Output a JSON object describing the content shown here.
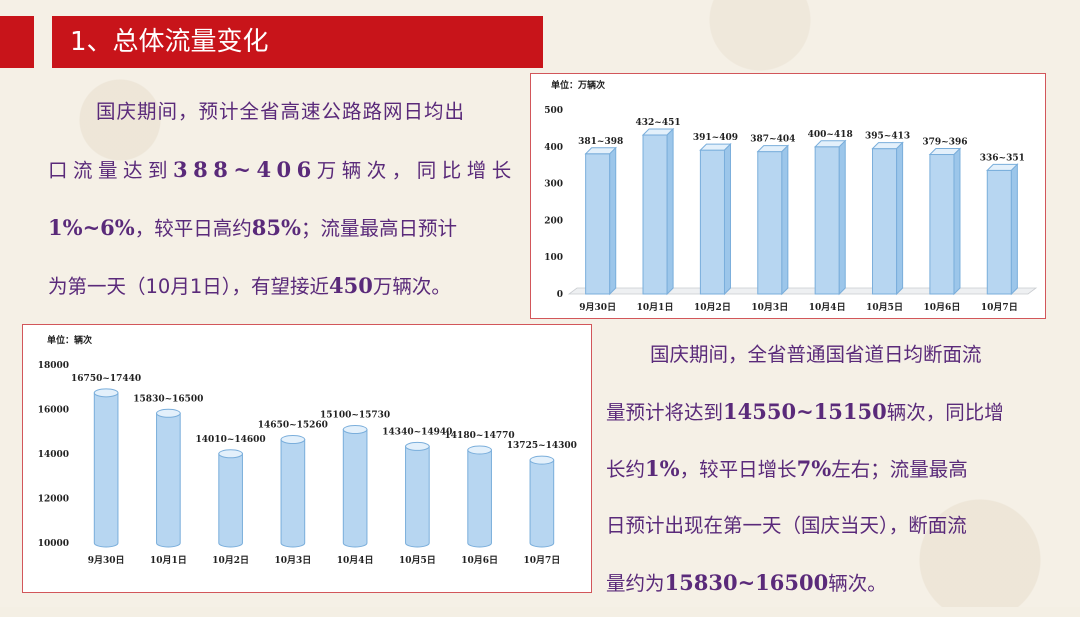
{
  "section_title": "1、总体流量变化",
  "para1": {
    "l1": "国庆期间，预计全省高速公路路网日均出",
    "l2a": "口流量达到",
    "l2b": "388~406",
    "l2c": "万辆次，同比增长",
    "l3a": "1%~6%",
    "l3b": "，较平日高约",
    "l3c": "85%",
    "l3d": "；流量最高日预计",
    "l4a": "为第一天（10月1日），有望接近",
    "l4b": "450",
    "l4c": "万辆次。"
  },
  "para2": {
    "l1": "国庆期间，全省普通国省道日均断面流",
    "l2a": "量预计将达到",
    "l2b": "14550~15150",
    "l2c": "辆次，同比增",
    "l3a": "长约",
    "l3b": "1%",
    "l3c": "，较平日增长",
    "l3d": "7%",
    "l3e": "左右；流量最高",
    "l4": "日预计出现在第一天（国庆当天），断面流",
    "l5a": "量约为",
    "l5b": "15830~16500",
    "l5c": "辆次。"
  },
  "chart_data": [
    {
      "type": "bar",
      "unit_label": "单位：万辆次",
      "categories": [
        "9月30日",
        "10月1日",
        "10月2日",
        "10月3日",
        "10月4日",
        "10月5日",
        "10月6日",
        "10月7日"
      ],
      "values": [
        381,
        432,
        391,
        387,
        400,
        395,
        379,
        336
      ],
      "data_labels": [
        "381~398",
        "432~451",
        "391~409",
        "387~404",
        "400~418",
        "395~413",
        "379~396",
        "336~351"
      ],
      "ylim": [
        0,
        500
      ],
      "yticks": [
        0,
        100,
        200,
        300,
        400,
        500
      ],
      "colors": {
        "bar_fill": "#b7d6f1",
        "bar_edge": "#7aaedb",
        "border": "#d2565a"
      }
    },
    {
      "type": "bar",
      "unit_label": "单位：辆次",
      "categories": [
        "9月30日",
        "10月1日",
        "10月2日",
        "10月3日",
        "10月4日",
        "10月5日",
        "10月6日",
        "10月7日"
      ],
      "values": [
        16750,
        15830,
        14010,
        14650,
        15100,
        14340,
        14180,
        13725
      ],
      "data_labels": [
        "16750~17440",
        "15830~16500",
        "14010~14600",
        "14650~15260",
        "15100~15730",
        "14340~14940",
        "14180~14770",
        "13725~14300"
      ],
      "ylim": [
        10000,
        18000
      ],
      "yticks": [
        10000,
        12000,
        14000,
        16000,
        18000
      ],
      "colors": {
        "bar_fill": "#b7d6f1",
        "bar_edge": "#7aaedb",
        "border": "#d2565a"
      }
    }
  ],
  "colors": {
    "title_bg": "#c8141a",
    "text": "#5a2a7a"
  }
}
